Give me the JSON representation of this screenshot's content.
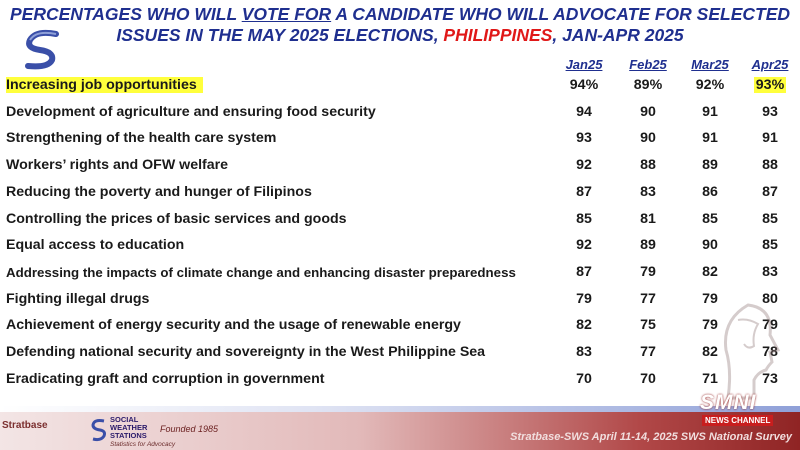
{
  "title": {
    "part1": "PERCENTAGES WHO WILL ",
    "part2": "VOTE FOR",
    "part3": " A CANDIDATE WHO WILL ADVOCATE FOR SELECTED",
    "part4": "ISSUES IN THE MAY 2025 ELECTIONS, ",
    "part5": "PHILIPPINES",
    "part6": ", JAN-APR 2025"
  },
  "colors": {
    "title_blue": "#1f2f8f",
    "highlight": "#ffff3c",
    "red": "#e01818"
  },
  "chart_data": {
    "type": "table",
    "columns": [
      "Jan25",
      "Feb25",
      "Mar25",
      "Apr25"
    ],
    "rows": [
      {
        "label": "Increasing job opportunities",
        "values": [
          "94%",
          "89%",
          "92%",
          "93%"
        ],
        "highlight": true
      },
      {
        "label": "Development of agriculture and ensuring food security",
        "values": [
          "94",
          "90",
          "91",
          "93"
        ]
      },
      {
        "label": "Strengthening of the health care system",
        "values": [
          "93",
          "90",
          "91",
          "91"
        ]
      },
      {
        "label": "Workers’ rights and OFW welfare",
        "values": [
          "92",
          "88",
          "89",
          "88"
        ]
      },
      {
        "label": "Reducing the poverty and hunger of Filipinos",
        "values": [
          "87",
          "83",
          "86",
          "87"
        ]
      },
      {
        "label": "Controlling the prices of basic services and goods",
        "values": [
          "85",
          "81",
          "85",
          "85"
        ]
      },
      {
        "label": "Equal access to education",
        "values": [
          "92",
          "89",
          "90",
          "85"
        ]
      },
      {
        "label": "Addressing the impacts of climate change and enhancing disaster preparedness",
        "values": [
          "87",
          "79",
          "82",
          "83"
        ]
      },
      {
        "label": "Fighting illegal drugs",
        "values": [
          "79",
          "77",
          "79",
          "80"
        ]
      },
      {
        "label": "Achievement of energy security and the usage of renewable energy",
        "values": [
          "82",
          "75",
          "79",
          "79"
        ]
      },
      {
        "label": "Defending national security and sovereignty in the West Philippine Sea",
        "values": [
          "83",
          "77",
          "82",
          "78"
        ]
      },
      {
        "label": "Eradicating graft and corruption in government",
        "values": [
          "70",
          "70",
          "71",
          "73"
        ]
      }
    ]
  },
  "footer": {
    "note": "Stratbase-SWS April 11-14, 2025 SWS National Survey",
    "stratbase": "Stratbase",
    "sws_name_1": "SOCIAL",
    "sws_name_2": "WEATHER",
    "sws_name_3": "STATIONS",
    "sws_founded": "Founded 1985",
    "sws_tagline": "Statistics for Advocacy",
    "smni_name": "SMNI",
    "smni_sub": "NEWS CHANNEL"
  }
}
